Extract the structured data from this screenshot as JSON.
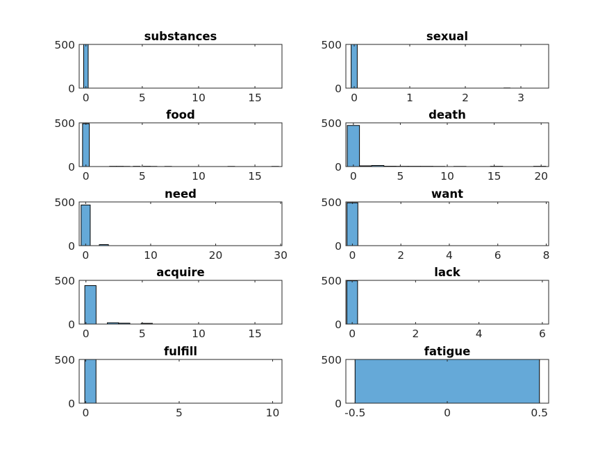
{
  "colors": {
    "bar_fill": "#65a9d8",
    "bar_edge": "#000000",
    "axes": "#262626"
  },
  "chart_data": [
    {
      "type": "bar",
      "title": "substances",
      "xlim": [
        -0.6,
        17.4
      ],
      "ylim": [
        0,
        500
      ],
      "xticks": [
        0,
        5,
        10,
        15
      ],
      "xtick_labels": [
        "0",
        "5",
        "10",
        "15"
      ],
      "yticks": [
        0,
        500
      ],
      "ytick_labels": [
        "0",
        "500"
      ],
      "bin_width": 0.4,
      "bins": [
        {
          "x0": -0.2,
          "x1": 0.2,
          "count": 500
        }
      ]
    },
    {
      "type": "bar",
      "title": "sexual",
      "xlim": [
        -0.15,
        3.5
      ],
      "ylim": [
        0,
        500
      ],
      "xticks": [
        0,
        1,
        2,
        3
      ],
      "xtick_labels": [
        "0",
        "1",
        "2",
        "3"
      ],
      "yticks": [
        0,
        500
      ],
      "ytick_labels": [
        "0",
        "500"
      ],
      "bin_width": 0.11,
      "bins": [
        {
          "x0": -0.055,
          "x1": 0.055,
          "count": 500
        },
        {
          "x0": 2.695,
          "x1": 2.805,
          "count": 2
        }
      ]
    },
    {
      "type": "bar",
      "title": "food",
      "xlim": [
        -0.6,
        17.4
      ],
      "ylim": [
        0,
        500
      ],
      "xticks": [
        0,
        5,
        10,
        15
      ],
      "xtick_labels": [
        "0",
        "5",
        "10",
        "15"
      ],
      "yticks": [
        0,
        500
      ],
      "ytick_labels": [
        "0",
        "500"
      ],
      "bin_width": 0.6,
      "bins": [
        {
          "x0": -0.3,
          "x1": 0.3,
          "count": 490
        },
        {
          "x0": 2.1,
          "x1": 2.7,
          "count": 3
        },
        {
          "x0": 2.7,
          "x1": 3.3,
          "count": 3
        },
        {
          "x0": 3.3,
          "x1": 3.9,
          "count": 2
        },
        {
          "x0": 4.2,
          "x1": 4.8,
          "count": 3
        },
        {
          "x0": 5.1,
          "x1": 5.7,
          "count": 3
        },
        {
          "x0": 5.7,
          "x1": 6.3,
          "count": 2
        },
        {
          "x0": 7.0,
          "x1": 7.6,
          "count": 2
        },
        {
          "x0": 12.6,
          "x1": 13.2,
          "count": 2
        },
        {
          "x0": 16.5,
          "x1": 17.1,
          "count": 2
        }
      ]
    },
    {
      "type": "bar",
      "title": "death",
      "xlim": [
        -0.8,
        20.8
      ],
      "ylim": [
        0,
        500
      ],
      "xticks": [
        0,
        5,
        10,
        15,
        20
      ],
      "xtick_labels": [
        "0",
        "5",
        "10",
        "15",
        "20"
      ],
      "yticks": [
        0,
        500
      ],
      "ytick_labels": [
        "0",
        "500"
      ],
      "bin_width": 1.3,
      "bins": [
        {
          "x0": -0.65,
          "x1": 0.65,
          "count": 470
        },
        {
          "x0": 0.65,
          "x1": 1.95,
          "count": 8
        },
        {
          "x0": 1.95,
          "x1": 3.25,
          "count": 12
        },
        {
          "x0": 3.25,
          "x1": 4.55,
          "count": 4
        },
        {
          "x0": 4.55,
          "x1": 5.85,
          "count": 3
        },
        {
          "x0": 5.85,
          "x1": 7.15,
          "count": 3
        },
        {
          "x0": 7.15,
          "x1": 8.45,
          "count": 3
        },
        {
          "x0": 8.45,
          "x1": 9.75,
          "count": 2
        },
        {
          "x0": 10.7,
          "x1": 12.0,
          "count": 2
        },
        {
          "x0": 14.6,
          "x1": 15.9,
          "count": 3
        },
        {
          "x0": 19.2,
          "x1": 20.5,
          "count": 3
        }
      ]
    },
    {
      "type": "bar",
      "title": "need",
      "xlim": [
        -1.0,
        30.2
      ],
      "ylim": [
        0,
        500
      ],
      "xticks": [
        0,
        10,
        20,
        30
      ],
      "xtick_labels": [
        "0",
        "10",
        "20",
        "30"
      ],
      "yticks": [
        0,
        500
      ],
      "ytick_labels": [
        "0",
        "500"
      ],
      "bin_width": 1.4,
      "bins": [
        {
          "x0": -0.7,
          "x1": 0.7,
          "count": 465
        },
        {
          "x0": 2.1,
          "x1": 3.5,
          "count": 12
        }
      ]
    },
    {
      "type": "bar",
      "title": "want",
      "xlim": [
        -0.27,
        8.1
      ],
      "ylim": [
        0,
        500
      ],
      "xticks": [
        0,
        2,
        4,
        6,
        8
      ],
      "xtick_labels": [
        "0",
        "2",
        "4",
        "6",
        "8"
      ],
      "yticks": [
        0,
        500
      ],
      "ytick_labels": [
        "0",
        "500"
      ],
      "bin_width": 0.45,
      "bins": [
        {
          "x0": -0.225,
          "x1": 0.225,
          "count": 490
        }
      ]
    },
    {
      "type": "bar",
      "title": "acquire",
      "xlim": [
        -0.6,
        17.4
      ],
      "ylim": [
        0,
        500
      ],
      "xticks": [
        0,
        5,
        10,
        15
      ],
      "xtick_labels": [
        "0",
        "5",
        "10",
        "15"
      ],
      "yticks": [
        0,
        500
      ],
      "ytick_labels": [
        "0",
        "500"
      ],
      "bin_width": 1.0,
      "bins": [
        {
          "x0": -0.1,
          "x1": 0.9,
          "count": 440
        },
        {
          "x0": 1.9,
          "x1": 2.9,
          "count": 15
        },
        {
          "x0": 2.9,
          "x1": 3.9,
          "count": 10
        },
        {
          "x0": 4.9,
          "x1": 5.9,
          "count": 8
        }
      ]
    },
    {
      "type": "bar",
      "title": "lack",
      "xlim": [
        -0.2,
        6.2
      ],
      "ylim": [
        0,
        500
      ],
      "xticks": [
        0,
        2,
        4,
        6
      ],
      "xtick_labels": [
        "0",
        "2",
        "4",
        "6"
      ],
      "yticks": [
        0,
        500
      ],
      "ytick_labels": [
        "0",
        "500"
      ],
      "bin_width": 0.34,
      "bins": [
        {
          "x0": -0.17,
          "x1": 0.17,
          "count": 495
        }
      ]
    },
    {
      "type": "bar",
      "title": "fulfill",
      "xlim": [
        -0.35,
        10.5
      ],
      "ylim": [
        0,
        500
      ],
      "xticks": [
        0,
        5,
        10
      ],
      "xtick_labels": [
        "0",
        "5",
        "10"
      ],
      "yticks": [
        0,
        500
      ],
      "ytick_labels": [
        "0",
        "500"
      ],
      "bin_width": 0.6,
      "bins": [
        {
          "x0": -0.05,
          "x1": 0.55,
          "count": 500
        }
      ]
    },
    {
      "type": "bar",
      "title": "fatigue",
      "xlim": [
        -0.55,
        0.55
      ],
      "ylim": [
        0,
        500
      ],
      "xticks": [
        -0.5,
        0,
        0.5
      ],
      "xtick_labels": [
        "-0.5",
        "0",
        "0.5"
      ],
      "yticks": [
        0,
        500
      ],
      "ytick_labels": [
        "0",
        "500"
      ],
      "bin_width": 1.0,
      "bins": [
        {
          "x0": -0.5,
          "x1": 0.5,
          "count": 500
        }
      ]
    }
  ]
}
